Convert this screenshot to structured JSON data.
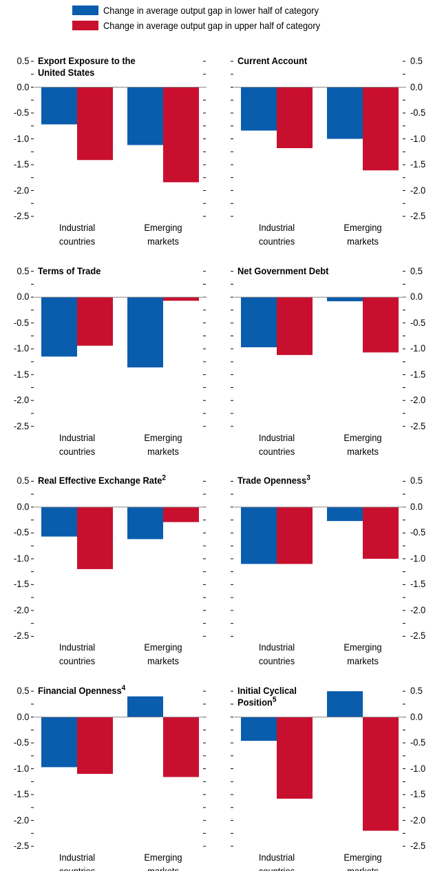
{
  "chart_data": [
    {
      "type": "bar",
      "title": [
        "Export Exposure to the",
        "United States"
      ],
      "categories": [
        "Industrial countries",
        "Emerging markets"
      ],
      "series": [
        {
          "name": "Change in average output gap in lower half of category",
          "color": "#0a5cad",
          "values": [
            -0.72,
            -1.12
          ]
        },
        {
          "name": "Change in average output gap in upper half of category",
          "color": "#c8102e",
          "values": [
            -1.41,
            -1.84
          ]
        }
      ],
      "ylim": [
        -2.5,
        0.5
      ],
      "yticks": [
        0.5,
        {
          "value": 0,
          "label": "0.0"
        },
        -0.5,
        {
          "value": -1,
          "label": "-1.0"
        },
        -1.5,
        {
          "value": -2,
          "label": "-2.0"
        },
        -2.5
      ],
      "minor_yticks": [
        0.25,
        -0.25,
        -0.75,
        -1.25,
        -1.75,
        -2.25
      ],
      "axis_side": "left"
    },
    {
      "type": "bar",
      "title": [
        "Current Account"
      ],
      "categories": [
        "Industrial countries",
        "Emerging markets"
      ],
      "series": [
        {
          "name": "Change in average output gap in lower half of category",
          "color": "#0a5cad",
          "values": [
            -0.84,
            -1.0
          ]
        },
        {
          "name": "Change in average output gap in upper half of category",
          "color": "#c8102e",
          "values": [
            -1.18,
            -1.61
          ]
        }
      ],
      "ylim": [
        -2.5,
        0.5
      ],
      "yticks": [
        0.5,
        {
          "value": 0,
          "label": "0.0"
        },
        -0.5,
        {
          "value": -1,
          "label": "-1.0"
        },
        -1.5,
        {
          "value": -2,
          "label": "-2.0"
        },
        -2.5
      ],
      "minor_yticks": [
        0.25,
        -0.25,
        -0.75,
        -1.25,
        -1.75,
        -2.25
      ],
      "axis_side": "right"
    },
    {
      "type": "bar",
      "title": [
        "Terms of Trade"
      ],
      "categories": [
        "Industrial countries",
        "Emerging markets"
      ],
      "series": [
        {
          "name": "Change in average output gap in lower half of category",
          "color": "#0a5cad",
          "values": [
            -1.15,
            -1.36
          ]
        },
        {
          "name": "Change in average output gap in upper half of category",
          "color": "#c8102e",
          "values": [
            -0.94,
            -0.07
          ]
        }
      ],
      "ylim": [
        -2.5,
        0.5
      ],
      "yticks": [
        0.5,
        {
          "value": 0,
          "label": "0.0"
        },
        -0.5,
        {
          "value": -1,
          "label": "-1.0"
        },
        -1.5,
        {
          "value": -2,
          "label": "-2.0"
        },
        -2.5
      ],
      "minor_yticks": [
        0.25,
        -0.25,
        -0.75,
        -1.25,
        -1.75,
        -2.25
      ],
      "axis_side": "left"
    },
    {
      "type": "bar",
      "title": [
        "Net Government Debt"
      ],
      "categories": [
        "Industrial countries",
        "Emerging markets"
      ],
      "series": [
        {
          "name": "Change in average output gap in lower half of category",
          "color": "#0a5cad",
          "values": [
            -0.97,
            -0.08
          ]
        },
        {
          "name": "Change in average output gap in upper half of category",
          "color": "#c8102e",
          "values": [
            -1.12,
            -1.07
          ]
        }
      ],
      "ylim": [
        -2.5,
        0.5
      ],
      "yticks": [
        0.5,
        {
          "value": 0,
          "label": "0.0"
        },
        -0.5,
        {
          "value": -1,
          "label": "-1.0"
        },
        -1.5,
        {
          "value": -2,
          "label": "-2.0"
        },
        -2.5
      ],
      "minor_yticks": [
        0.25,
        -0.25,
        -0.75,
        -1.25,
        -1.75,
        -2.25
      ],
      "axis_side": "right"
    },
    {
      "type": "bar",
      "title": [
        "Real Effective Exchange Rate"
      ],
      "title_note": "2",
      "categories": [
        "Industrial countries",
        "Emerging markets"
      ],
      "series": [
        {
          "name": "Change in average output gap in lower half of category",
          "color": "#0a5cad",
          "values": [
            -0.57,
            -0.62
          ]
        },
        {
          "name": "Change in average output gap in upper half of category",
          "color": "#c8102e",
          "values": [
            -1.2,
            -0.29
          ]
        }
      ],
      "ylim": [
        -2.5,
        0.5
      ],
      "yticks": [
        0.5,
        {
          "value": 0,
          "label": "0.0"
        },
        -0.5,
        {
          "value": -1,
          "label": "-1.0"
        },
        -1.5,
        {
          "value": -2,
          "label": "-2.0"
        },
        -2.5
      ],
      "minor_yticks": [
        0.25,
        -0.25,
        -0.75,
        -1.25,
        -1.75,
        -2.25
      ],
      "axis_side": "left"
    },
    {
      "type": "bar",
      "title": [
        "Trade Openness"
      ],
      "title_note": "3",
      "categories": [
        "Industrial countries",
        "Emerging markets"
      ],
      "series": [
        {
          "name": "Change in average output gap in lower half of category",
          "color": "#0a5cad",
          "values": [
            -1.1,
            -0.27
          ]
        },
        {
          "name": "Change in average output gap in upper half of category",
          "color": "#c8102e",
          "values": [
            -1.1,
            -1.0
          ]
        }
      ],
      "ylim": [
        -2.5,
        0.5
      ],
      "yticks": [
        0.5,
        {
          "value": 0,
          "label": "0.0"
        },
        -0.5,
        {
          "value": -1,
          "label": "-1.0"
        },
        -1.5,
        {
          "value": -2,
          "label": "-2.0"
        },
        -2.5
      ],
      "minor_yticks": [
        0.25,
        -0.25,
        -0.75,
        -1.25,
        -1.75,
        -2.25
      ],
      "axis_side": "right"
    },
    {
      "type": "bar",
      "title": [
        "Financial Openness"
      ],
      "title_note": "4",
      "categories": [
        "Industrial countries",
        "Emerging markets"
      ],
      "series": [
        {
          "name": "Change in average output gap in lower half of category",
          "color": "#0a5cad",
          "values": [
            -0.97,
            0.4
          ]
        },
        {
          "name": "Change in average output gap in upper half of category",
          "color": "#c8102e",
          "values": [
            -1.1,
            -1.16
          ]
        }
      ],
      "ylim": [
        -2.5,
        0.5
      ],
      "yticks": [
        0.5,
        {
          "value": 0,
          "label": "0.0"
        },
        -0.5,
        {
          "value": -1,
          "label": "-1.0"
        },
        -1.5,
        {
          "value": -2,
          "label": "-2.0"
        },
        -2.5
      ],
      "minor_yticks": [
        0.25,
        -0.25,
        -0.75,
        -1.25,
        -1.75,
        -2.25
      ],
      "axis_side": "left"
    },
    {
      "type": "bar",
      "title": [
        "Initial Cyclical",
        "Position"
      ],
      "title_note": "5",
      "categories": [
        "Industrial countries",
        "Emerging markets"
      ],
      "series": [
        {
          "name": "Change in average output gap in lower half of category",
          "color": "#0a5cad",
          "values": [
            -0.46,
            0.5
          ]
        },
        {
          "name": "Change in average output gap in upper half of category",
          "color": "#c8102e",
          "values": [
            -1.58,
            -2.2
          ]
        }
      ],
      "ylim": [
        -2.5,
        0.5
      ],
      "yticks": [
        0.5,
        {
          "value": 0,
          "label": "0.0"
        },
        -0.5,
        {
          "value": -1,
          "label": "-1.0"
        },
        -1.5,
        {
          "value": -2,
          "label": "-2.0"
        },
        -2.5
      ],
      "minor_yticks": [
        0.25,
        -0.25,
        -0.75,
        -1.25,
        -1.75,
        -2.25
      ],
      "axis_side": "right"
    }
  ]
}
